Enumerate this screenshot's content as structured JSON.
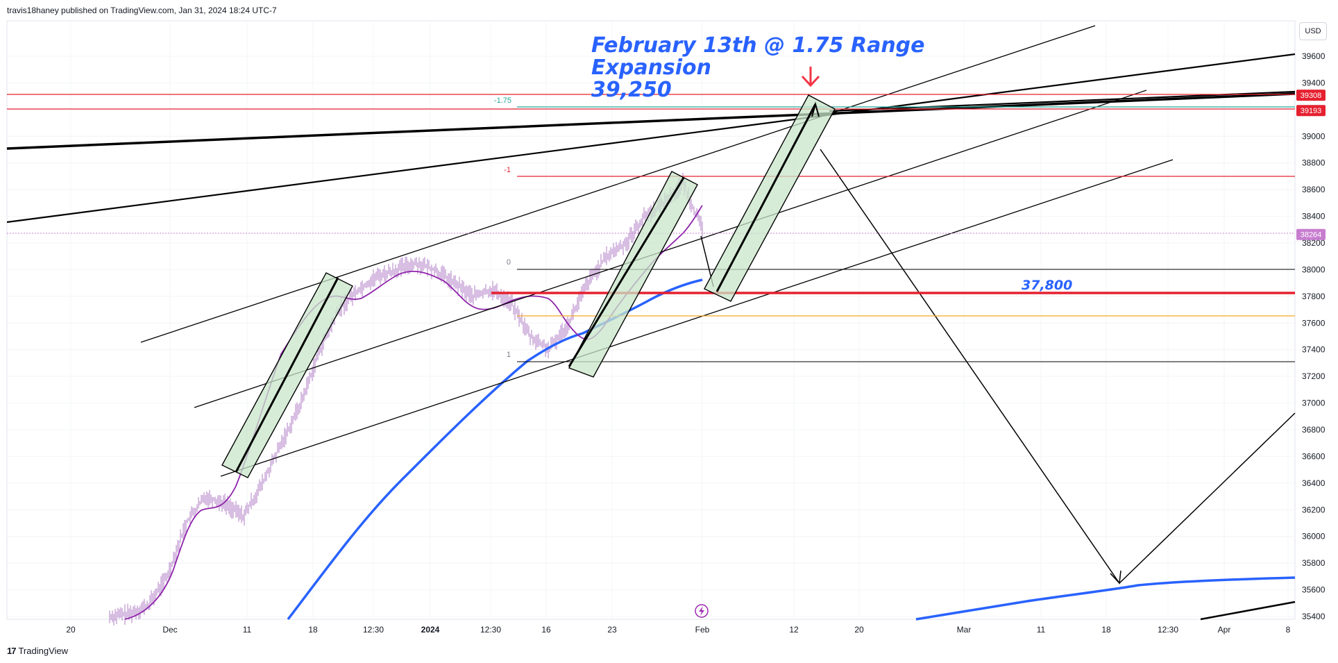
{
  "header": {
    "published": "travis18haney published on TradingView.com, Jan 31, 2024 18:24 UTC-7"
  },
  "footer": {
    "logo_mark": "17",
    "logo_text": "TradingView"
  },
  "toolbar": {
    "currency": "USD"
  },
  "colors": {
    "candles": "#b07cc6",
    "ma_fast": "#8e24aa",
    "ma_slow": "#2962ff",
    "red_line": "#e5202f",
    "annotation": "#2962ff",
    "arrow": "#f23645",
    "channel_fill": "#c8e6c9"
  },
  "chart_data": {
    "type": "line",
    "symbol_axis": "price",
    "ylim": [
      35400,
      39700
    ],
    "y_ticks": [
      39600,
      39400,
      39200,
      39000,
      38800,
      38600,
      38400,
      38200,
      38000,
      37800,
      37600,
      37400,
      37200,
      37000,
      36800,
      36600,
      36400,
      36200,
      36000,
      35800,
      35600,
      35400
    ],
    "x_tick_labels": [
      "20",
      "Dec",
      "11",
      "18",
      "12:30",
      "2024",
      "12:30",
      "16",
      "23",
      "Feb",
      "12",
      "20",
      "Mar",
      "11",
      "18",
      "12:30",
      "Apr",
      "8"
    ],
    "price_labels": [
      {
        "value": 39308,
        "text": "39308",
        "color": "#e5202f"
      },
      {
        "value": 39193,
        "text": "39193",
        "color": "#e5202f"
      },
      {
        "value": 38264,
        "text": "38264",
        "color": "#c77dcf"
      }
    ],
    "fib_levels": [
      {
        "label": "-1.75",
        "value": 39193
      },
      {
        "label": "-1",
        "value": 38700
      },
      {
        "label": "0",
        "value": 38000
      },
      {
        "label": "1",
        "value": 37300
      }
    ],
    "horizontal_levels": [
      {
        "value": 39308,
        "color": "#e5202f"
      },
      {
        "value": 39193,
        "color": "#e5202f"
      },
      {
        "value": 37820,
        "color": "#e5202f",
        "label": "37,800"
      },
      {
        "value": 37650,
        "color": "#f5a623"
      }
    ],
    "annotations": {
      "headline_1": "February 13th @ 1.75 Range",
      "headline_2": "Expansion",
      "headline_3": "39,250",
      "level_label": "37,800"
    },
    "series": [
      {
        "name": "",
        "points": [
          [
            0,
            35400
          ],
          [
            10,
            35420
          ],
          [
            20,
            35480
          ],
          [
            30,
            35700
          ],
          [
            40,
            36100
          ],
          [
            50,
            36300
          ],
          [
            60,
            36250
          ],
          [
            70,
            36150
          ],
          [
            80,
            36400
          ],
          [
            90,
            36700
          ],
          [
            100,
            37000
          ],
          [
            110,
            37400
          ],
          [
            120,
            37700
          ],
          [
            130,
            37850
          ],
          [
            140,
            37950
          ],
          [
            150,
            38000
          ],
          [
            160,
            38050
          ],
          [
            170,
            38000
          ],
          [
            180,
            37900
          ],
          [
            190,
            37800
          ],
          [
            200,
            37850
          ],
          [
            210,
            37750
          ],
          [
            220,
            37500
          ],
          [
            230,
            37400
          ],
          [
            240,
            37600
          ],
          [
            250,
            37900
          ],
          [
            260,
            38100
          ],
          [
            270,
            38200
          ],
          [
            280,
            38400
          ],
          [
            290,
            38500
          ],
          [
            300,
            38650
          ],
          [
            310,
            38300
          ]
        ]
      }
    ]
  }
}
